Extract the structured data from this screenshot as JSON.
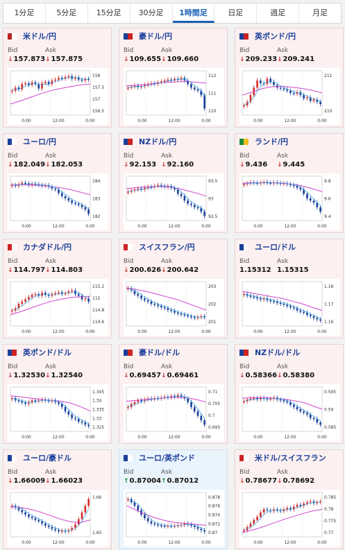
{
  "tabs": [
    {
      "label": "1分足",
      "active": false
    },
    {
      "label": "5分足",
      "active": false
    },
    {
      "label": "15分足",
      "active": false
    },
    {
      "label": "30分足",
      "active": false
    },
    {
      "label": "1時間足",
      "active": true
    },
    {
      "label": "日足",
      "active": false
    },
    {
      "label": "週足",
      "active": false
    },
    {
      "label": "月足",
      "active": false
    }
  ],
  "bid_label": "Bid",
  "ask_label": "Ask",
  "colors": {
    "down": "#cc3333",
    "up": "#1a8a3a",
    "bull": "#d42a2a",
    "bear": "#1a3f9a",
    "ma_long": "#cc44cc",
    "ma_short": "#44aadd"
  },
  "cards": [
    {
      "name": "usd-jpy",
      "pair": "米ドル/円",
      "bid": "157.873",
      "ask": "157.875",
      "dir": "down",
      "flag": [
        "#b22",
        "#fff"
      ],
      "ticks": [
        "158",
        "157.5",
        "157",
        "156.5"
      ],
      "xlabels": [
        "0:00",
        "12:00",
        "0:00"
      ],
      "shape": [
        0.55,
        0.62,
        0.58,
        0.7,
        0.72,
        0.68,
        0.74,
        0.7,
        0.6,
        0.72,
        0.75,
        0.7,
        0.78,
        0.8,
        0.84,
        0.82,
        0.86,
        0.88,
        0.82,
        0.85,
        0.8,
        0.78,
        0.82,
        0.8
      ],
      "ma": [
        0.25,
        0.32,
        0.4,
        0.48,
        0.55,
        0.6,
        0.64,
        0.68,
        0.7
      ]
    },
    {
      "name": "aud-jpy",
      "pair": "豪ドル/円",
      "bid": "109.655",
      "ask": "109.660",
      "dir": "down",
      "flag": [
        "#1a3f9a",
        "#c22"
      ],
      "ticks": [
        "112",
        "111",
        "110"
      ],
      "xlabels": [
        "0:00",
        "12:00",
        "0:00"
      ],
      "shape": [
        0.62,
        0.64,
        0.66,
        0.63,
        0.65,
        0.68,
        0.7,
        0.72,
        0.7,
        0.74,
        0.76,
        0.78,
        0.8,
        0.78,
        0.82,
        0.8,
        0.84,
        0.78,
        0.7,
        0.62,
        0.58,
        0.55,
        0.45,
        0.15
      ],
      "ma": [
        0.66,
        0.67,
        0.69,
        0.72,
        0.74,
        0.75,
        0.76,
        0.74,
        0.72
      ]
    },
    {
      "name": "gbp-jpy",
      "pair": "英ポンド/円",
      "bid": "209.233",
      "ask": "209.241",
      "dir": "down",
      "flag": [
        "#1a3f9a",
        "#c22"
      ],
      "ticks": [
        "211",
        "210"
      ],
      "xlabels": [
        "0:00",
        "12:00",
        "0:00"
      ],
      "shape": [
        0.22,
        0.3,
        0.45,
        0.62,
        0.78,
        0.72,
        0.7,
        0.82,
        0.75,
        0.68,
        0.62,
        0.6,
        0.58,
        0.55,
        0.5,
        0.48,
        0.52,
        0.45,
        0.38,
        0.4,
        0.32,
        0.35,
        0.3,
        0.25
      ],
      "ma": [
        0.45,
        0.52,
        0.6,
        0.64,
        0.65,
        0.63,
        0.6,
        0.56,
        0.5
      ]
    },
    {
      "name": "eur-jpy",
      "pair": "ユーロ/円",
      "bid": "182.049",
      "ask": "182.053",
      "dir": "down",
      "flag": [
        "#1a3f9a",
        "#fff"
      ],
      "ticks": [
        "184",
        "183",
        "182"
      ],
      "xlabels": [
        "0:00",
        "12:00",
        "0:00"
      ],
      "shape": [
        0.8,
        0.78,
        0.82,
        0.85,
        0.84,
        0.8,
        0.83,
        0.82,
        0.8,
        0.78,
        0.8,
        0.76,
        0.72,
        0.7,
        0.62,
        0.55,
        0.5,
        0.45,
        0.4,
        0.38,
        0.35,
        0.3,
        0.25,
        0.15
      ],
      "ma": [
        0.8,
        0.81,
        0.8,
        0.79,
        0.77,
        0.74,
        0.7,
        0.64,
        0.58
      ]
    },
    {
      "name": "nzd-jpy",
      "pair": "NZドル/円",
      "bid": "92.153",
      "ask": "92.160",
      "dir": "down",
      "flag": [
        "#1a3f9a",
        "#c22"
      ],
      "ticks": [
        "93.5",
        "93",
        "92.5"
      ],
      "xlabels": [
        "0:00",
        "12:00",
        "0:00"
      ],
      "shape": [
        0.65,
        0.68,
        0.7,
        0.72,
        0.7,
        0.74,
        0.76,
        0.75,
        0.78,
        0.8,
        0.78,
        0.76,
        0.78,
        0.74,
        0.7,
        0.6,
        0.55,
        0.45,
        0.38,
        0.35,
        0.3,
        0.28,
        0.2,
        0.1
      ],
      "ma": [
        0.72,
        0.74,
        0.76,
        0.77,
        0.76,
        0.73,
        0.68,
        0.62,
        0.55
      ]
    },
    {
      "name": "zar-jpy",
      "pair": "ランド/円",
      "bid": "9.436",
      "ask": "9.445",
      "dir": "down",
      "flag": [
        "#1a8a3a",
        "#f0c020"
      ],
      "ticks": [
        "9.8",
        "9.6",
        "9.4"
      ],
      "xlabels": [
        "0:00",
        "12:00",
        "0:00"
      ],
      "shape": [
        0.82,
        0.84,
        0.86,
        0.85,
        0.84,
        0.86,
        0.87,
        0.85,
        0.84,
        0.86,
        0.85,
        0.83,
        0.84,
        0.82,
        0.8,
        0.78,
        0.74,
        0.7,
        0.6,
        0.5,
        0.45,
        0.4,
        0.3,
        0.2
      ],
      "ma": [
        0.84,
        0.85,
        0.85,
        0.85,
        0.84,
        0.82,
        0.78,
        0.72,
        0.65
      ]
    },
    {
      "name": "cad-jpy",
      "pair": "カナダドル/円",
      "bid": "114.797",
      "ask": "114.803",
      "dir": "down",
      "flag": [
        "#c22",
        "#fff"
      ],
      "ticks": [
        "115.2",
        "115",
        "114.8",
        "114.6"
      ],
      "xlabels": [
        "0:00",
        "12:00",
        "0:00"
      ],
      "shape": [
        0.35,
        0.4,
        0.5,
        0.55,
        0.6,
        0.65,
        0.7,
        0.72,
        0.68,
        0.75,
        0.7,
        0.68,
        0.72,
        0.74,
        0.76,
        0.72,
        0.74,
        0.78,
        0.8,
        0.72,
        0.68,
        0.6,
        0.62,
        0.55
      ],
      "ma": [
        0.25,
        0.32,
        0.4,
        0.48,
        0.55,
        0.6,
        0.64,
        0.66,
        0.67
      ]
    },
    {
      "name": "chf-jpy",
      "pair": "スイスフラン/円",
      "bid": "200.626",
      "ask": "200.642",
      "dir": "down",
      "flag": [
        "#c22",
        "#fff"
      ],
      "ticks": [
        "203",
        "202",
        "201"
      ],
      "xlabels": [
        "0:00",
        "12:00",
        "0:00"
      ],
      "shape": [
        0.85,
        0.8,
        0.72,
        0.68,
        0.62,
        0.58,
        0.55,
        0.5,
        0.48,
        0.45,
        0.42,
        0.4,
        0.36,
        0.34,
        0.3,
        0.28,
        0.26,
        0.24,
        0.22,
        0.2,
        0.18,
        0.2,
        0.22,
        0.2
      ],
      "ma": [
        0.86,
        0.82,
        0.78,
        0.72,
        0.66,
        0.6,
        0.52,
        0.44,
        0.36
      ]
    },
    {
      "name": "eur-usd",
      "pair": "ユーロ/ドル",
      "bid": "1.15312",
      "ask": "1.15315",
      "dir": "none",
      "flag": [
        "#1a3f9a",
        "#fff"
      ],
      "ticks": [
        "1.18",
        "1.17",
        "1.16"
      ],
      "xlabels": [
        "0:00",
        "12:00",
        "0:00"
      ],
      "shape": [
        0.72,
        0.68,
        0.66,
        0.65,
        0.62,
        0.6,
        0.62,
        0.58,
        0.56,
        0.55,
        0.52,
        0.5,
        0.48,
        0.45,
        0.42,
        0.4,
        0.35,
        0.32,
        0.3,
        0.25,
        0.22,
        0.18,
        0.15,
        0.12
      ],
      "ma": [
        0.78,
        0.74,
        0.7,
        0.66,
        0.62,
        0.56,
        0.5,
        0.42,
        0.35
      ]
    },
    {
      "name": "gbp-usd",
      "pair": "英ポンド/ドル",
      "bid": "1.32530",
      "ask": "1.32540",
      "dir": "down",
      "flag": [
        "#1a3f9a",
        "#c22"
      ],
      "ticks": [
        "1.345",
        "1.34",
        "1.335",
        "1.33",
        "1.325"
      ],
      "xlabels": [
        "0:00",
        "12:00",
        "0:00"
      ],
      "shape": [
        0.75,
        0.7,
        0.68,
        0.65,
        0.62,
        0.66,
        0.7,
        0.68,
        0.7,
        0.72,
        0.7,
        0.68,
        0.7,
        0.66,
        0.62,
        0.55,
        0.45,
        0.38,
        0.3,
        0.28,
        0.22,
        0.2,
        0.15,
        0.12
      ],
      "ma": [
        0.8,
        0.78,
        0.75,
        0.72,
        0.7,
        0.68,
        0.64,
        0.56,
        0.46
      ]
    },
    {
      "name": "aud-usd",
      "pair": "豪ドル/ドル",
      "bid": "0.69457",
      "ask": "0.69461",
      "dir": "down",
      "flag": [
        "#1a3f9a",
        "#c22"
      ],
      "ticks": [
        "0.71",
        "0.705",
        "0.7",
        "0.695"
      ],
      "xlabels": [
        "0:00",
        "12:00",
        "0:00"
      ],
      "shape": [
        0.55,
        0.62,
        0.66,
        0.7,
        0.68,
        0.72,
        0.74,
        0.72,
        0.75,
        0.74,
        0.76,
        0.78,
        0.76,
        0.8,
        0.78,
        0.82,
        0.78,
        0.74,
        0.66,
        0.55,
        0.45,
        0.35,
        0.25,
        0.15
      ],
      "ma": [
        0.68,
        0.7,
        0.72,
        0.74,
        0.76,
        0.77,
        0.76,
        0.72,
        0.66
      ]
    },
    {
      "name": "nzd-usd",
      "pair": "NZドル/ドル",
      "bid": "0.58366",
      "ask": "0.58380",
      "dir": "down",
      "flag": [
        "#1a3f9a",
        "#c22"
      ],
      "ticks": [
        "0.595",
        "0.59",
        "0.585"
      ],
      "xlabels": [
        "0:00",
        "12:00",
        "0:00"
      ],
      "shape": [
        0.68,
        0.72,
        0.74,
        0.75,
        0.72,
        0.76,
        0.74,
        0.72,
        0.74,
        0.76,
        0.72,
        0.7,
        0.68,
        0.66,
        0.6,
        0.55,
        0.5,
        0.45,
        0.42,
        0.38,
        0.3,
        0.28,
        0.2,
        0.15
      ],
      "ma": [
        0.75,
        0.76,
        0.76,
        0.75,
        0.73,
        0.7,
        0.66,
        0.58,
        0.5
      ]
    },
    {
      "name": "eur-aud",
      "pair": "ユーロ/豪ドル",
      "bid": "1.66009",
      "ask": "1.66023",
      "dir": "down",
      "flag": [
        "#1a3f9a",
        "#fff"
      ],
      "ticks": [
        "1.66",
        "1.65"
      ],
      "xlabels": [
        "0:00",
        "12:00",
        "0:00"
      ],
      "shape": [
        0.7,
        0.66,
        0.6,
        0.55,
        0.5,
        0.45,
        0.42,
        0.38,
        0.35,
        0.3,
        0.25,
        0.22,
        0.18,
        0.15,
        0.12,
        0.14,
        0.12,
        0.15,
        0.2,
        0.28,
        0.4,
        0.55,
        0.7,
        0.85
      ],
      "ma": [
        0.68,
        0.66,
        0.62,
        0.56,
        0.48,
        0.4,
        0.34,
        0.32,
        0.38
      ]
    },
    {
      "name": "eur-gbp",
      "pair": "ユーロ/英ポンド",
      "bid": "0.87004",
      "ask": "0.87012",
      "dir": "up",
      "flag": [
        "#1a3f9a",
        "#fff"
      ],
      "ticks": [
        "0.878",
        "0.876",
        "0.874",
        "0.872",
        "0.87"
      ],
      "xlabels": [
        "0:00",
        "12:00",
        "0:00"
      ],
      "shape": [
        0.85,
        0.78,
        0.7,
        0.6,
        0.5,
        0.42,
        0.35,
        0.3,
        0.28,
        0.26,
        0.25,
        0.24,
        0.25,
        0.24,
        0.25,
        0.26,
        0.27,
        0.3,
        0.28,
        0.25,
        0.22,
        0.18,
        0.15,
        0.12
      ],
      "ma": [
        0.7,
        0.6,
        0.5,
        0.42,
        0.36,
        0.32,
        0.3,
        0.28,
        0.26
      ]
    },
    {
      "name": "usd-chf",
      "pair": "米ドル/スイスフラン",
      "bid": "0.78677",
      "ask": "0.78692",
      "dir": "down",
      "flag": [
        "#c22",
        "#fff"
      ],
      "ticks": [
        "0.785",
        "0.78",
        "0.775",
        "0.77"
      ],
      "xlabels": [
        "0:00",
        "12:00",
        "0:00"
      ],
      "shape": [
        0.15,
        0.22,
        0.3,
        0.38,
        0.45,
        0.55,
        0.62,
        0.6,
        0.58,
        0.62,
        0.6,
        0.58,
        0.62,
        0.65,
        0.62,
        0.68,
        0.72,
        0.7,
        0.75,
        0.78,
        0.8,
        0.76,
        0.78,
        0.8
      ],
      "ma": [
        0.1,
        0.15,
        0.22,
        0.3,
        0.38,
        0.45,
        0.52,
        0.58,
        0.62
      ]
    }
  ]
}
